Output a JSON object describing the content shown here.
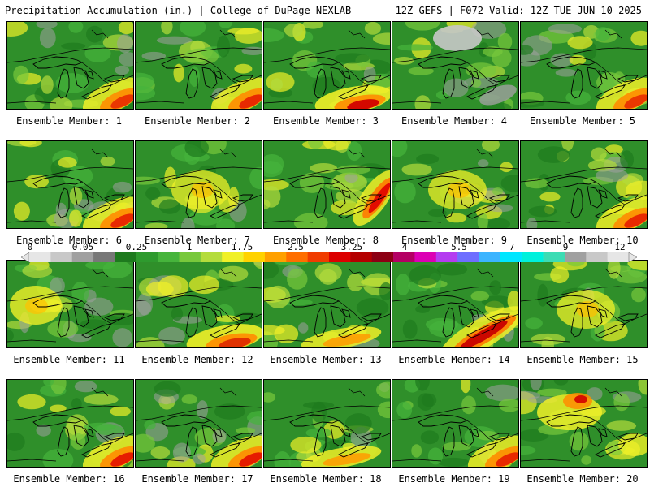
{
  "header": {
    "left_title": "Precipitation Accumulation (in.) | College of DuPage NEXLAB",
    "right_title": "12Z GEFS | F072 Valid: 12Z TUE JUN 10 2025"
  },
  "members": [
    {
      "caption": "Ensemble Member: 1",
      "hotspot": "red-southeast",
      "intensity": 0.7
    },
    {
      "caption": "Ensemble Member: 2",
      "hotspot": "red-southeast",
      "intensity": 0.8
    },
    {
      "caption": "Ensemble Member: 3",
      "hotspot": "red-south",
      "intensity": 1.0
    },
    {
      "caption": "Ensemble Member: 4",
      "hotspot": "dry-northeast",
      "intensity": 0.4
    },
    {
      "caption": "Ensemble Member: 5",
      "hotspot": "red-southeast",
      "intensity": 0.7
    },
    {
      "caption": "Ensemble Member: 6",
      "hotspot": "red-southeast",
      "intensity": 0.8
    },
    {
      "caption": "Ensemble Member: 7",
      "hotspot": "yellow-center",
      "intensity": 0.6
    },
    {
      "caption": "Ensemble Member: 8",
      "hotspot": "red-east-band",
      "intensity": 0.9
    },
    {
      "caption": "Ensemble Member: 9",
      "hotspot": "yellow-center",
      "intensity": 0.5
    },
    {
      "caption": "Ensemble Member: 10",
      "hotspot": "red-southeast",
      "intensity": 0.8
    },
    {
      "caption": "Ensemble Member: 11",
      "hotspot": "yellow-west",
      "intensity": 0.6
    },
    {
      "caption": "Ensemble Member: 12",
      "hotspot": "red-south",
      "intensity": 0.7
    },
    {
      "caption": "Ensemble Member: 13",
      "hotspot": "orange-south",
      "intensity": 0.7
    },
    {
      "caption": "Ensemble Member: 14",
      "hotspot": "red-southeast-band",
      "intensity": 1.0
    },
    {
      "caption": "Ensemble Member: 15",
      "hotspot": "yellow-center",
      "intensity": 0.6
    },
    {
      "caption": "Ensemble Member: 16",
      "hotspot": "red-southeast",
      "intensity": 0.9
    },
    {
      "caption": "Ensemble Member: 17",
      "hotspot": "red-southeast",
      "intensity": 0.9
    },
    {
      "caption": "Ensemble Member: 18",
      "hotspot": "orange-south",
      "intensity": 0.6
    },
    {
      "caption": "Ensemble Member: 19",
      "hotspot": "red-southeast",
      "intensity": 0.8
    },
    {
      "caption": "Ensemble Member: 20",
      "hotspot": "red-northeast",
      "intensity": 0.8
    }
  ],
  "colorbar": {
    "labels": [
      "0",
      "0.05",
      "0.25",
      "1",
      "1.75",
      "2.5",
      "3.25",
      "4",
      "5.5",
      "7",
      "9",
      "12"
    ],
    "colors": [
      "#e6e6e6",
      "#c8c8c8",
      "#a0a0a0",
      "#787878",
      "#1e7a1e",
      "#2e9a2e",
      "#46b43c",
      "#78c83c",
      "#b4dc3c",
      "#f0f028",
      "#ffd200",
      "#ffa000",
      "#ff6e00",
      "#f03c00",
      "#dc0000",
      "#b40000",
      "#8c0014",
      "#b40064",
      "#dc00b4",
      "#b43cf0",
      "#6e6eff",
      "#3cb4ff",
      "#00e6ff",
      "#00f0dc",
      "#3cdcb4",
      "#a0a0a0",
      "#c8c8c8",
      "#e6e6e6"
    ]
  }
}
